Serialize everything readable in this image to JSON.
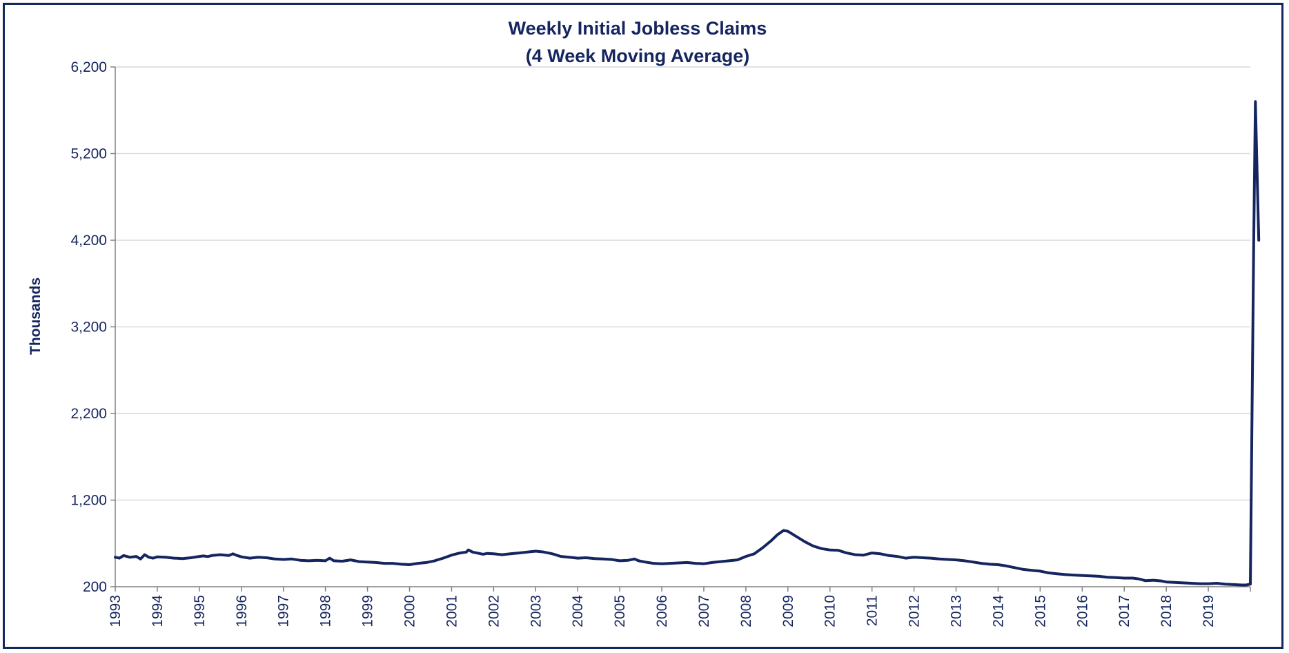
{
  "chart_data": {
    "type": "line",
    "title": [
      "Weekly Initial Jobless Claims",
      "(4 Week Moving  Average)"
    ],
    "xlabel": "",
    "ylabel": "Thousands",
    "ylim": [
      200,
      6200
    ],
    "yticks": [
      200,
      1200,
      2200,
      3200,
      4200,
      5200,
      6200
    ],
    "ytick_labels": [
      "200",
      "1,200",
      "2,200",
      "3,200",
      "4,200",
      "5,200",
      "6,200"
    ],
    "xlim": [
      1993,
      2020
    ],
    "xticks": [
      1993,
      1994,
      1995,
      1996,
      1997,
      1998,
      1999,
      2000,
      2001,
      2002,
      2003,
      2004,
      2005,
      2006,
      2007,
      2008,
      2009,
      2010,
      2011,
      2012,
      2013,
      2014,
      2015,
      2016,
      2017,
      2018,
      2019
    ],
    "xtick_labels": [
      "1993",
      "1994",
      "1995",
      "1996",
      "1997",
      "1998",
      "1999",
      "2000",
      "2001",
      "2002",
      "2003",
      "2004",
      "2005",
      "2006",
      "2007",
      "2008",
      "2009",
      "2010",
      "2011",
      "2012",
      "2013",
      "2014",
      "2015",
      "2016",
      "2017",
      "2018",
      "2019"
    ],
    "grid": true,
    "legend": "none",
    "line_color": "#15255f",
    "grid_color": "#d9d9d9",
    "series": [
      {
        "x": [
          1993.0,
          1993.1,
          1993.2,
          1993.35,
          1993.5,
          1993.6,
          1993.7,
          1993.8,
          1993.9,
          1994.0,
          1994.2,
          1994.4,
          1994.6,
          1994.8,
          1995.0,
          1995.1,
          1995.2,
          1995.3,
          1995.5,
          1995.7,
          1995.8,
          1995.9,
          1996.0,
          1996.2,
          1996.4,
          1996.6,
          1996.8,
          1997.0,
          1997.2,
          1997.4,
          1997.6,
          1997.8,
          1998.0,
          1998.1,
          1998.2,
          1998.4,
          1998.6,
          1998.8,
          1999.0,
          1999.2,
          1999.4,
          1999.6,
          1999.8,
          2000.0,
          2000.2,
          2000.4,
          2000.6,
          2000.8,
          2001.0,
          2001.2,
          2001.35,
          2001.4,
          2001.5,
          2001.6,
          2001.75,
          2001.85,
          2002.0,
          2002.2,
          2002.4,
          2002.6,
          2002.8,
          2003.0,
          2003.2,
          2003.4,
          2003.6,
          2003.8,
          2004.0,
          2004.2,
          2004.4,
          2004.6,
          2004.8,
          2005.0,
          2005.2,
          2005.35,
          2005.45,
          2005.6,
          2005.8,
          2006.0,
          2006.2,
          2006.4,
          2006.6,
          2006.8,
          2007.0,
          2007.2,
          2007.4,
          2007.6,
          2007.8,
          2008.0,
          2008.2,
          2008.4,
          2008.6,
          2008.75,
          2008.9,
          2009.0,
          2009.2,
          2009.4,
          2009.6,
          2009.8,
          2010.0,
          2010.2,
          2010.4,
          2010.6,
          2010.8,
          2011.0,
          2011.2,
          2011.4,
          2011.6,
          2011.8,
          2012.0,
          2012.2,
          2012.4,
          2012.6,
          2012.8,
          2013.0,
          2013.2,
          2013.4,
          2013.6,
          2013.8,
          2014.0,
          2014.2,
          2014.4,
          2014.6,
          2014.8,
          2015.0,
          2015.2,
          2015.4,
          2015.6,
          2015.8,
          2016.0,
          2016.2,
          2016.4,
          2016.6,
          2016.8,
          2017.0,
          2017.2,
          2017.35,
          2017.5,
          2017.7,
          2017.9,
          2018.0,
          2018.2,
          2018.4,
          2018.6,
          2018.8,
          2019.0,
          2019.2,
          2019.4,
          2019.6,
          2019.8,
          2019.9,
          2020.0,
          2020.08,
          2020.12,
          2020.16,
          2020.2
        ],
        "y": [
          540,
          530,
          560,
          540,
          550,
          520,
          570,
          540,
          530,
          545,
          540,
          530,
          525,
          535,
          550,
          555,
          548,
          560,
          570,
          560,
          580,
          560,
          545,
          530,
          540,
          535,
          520,
          515,
          520,
          505,
          500,
          505,
          500,
          530,
          500,
          495,
          510,
          490,
          485,
          480,
          470,
          470,
          460,
          455,
          470,
          480,
          500,
          530,
          565,
          590,
          600,
          625,
          600,
          590,
          575,
          585,
          580,
          570,
          580,
          590,
          600,
          610,
          600,
          580,
          550,
          540,
          530,
          535,
          525,
          520,
          515,
          500,
          505,
          520,
          500,
          485,
          470,
          465,
          470,
          475,
          480,
          470,
          465,
          480,
          490,
          500,
          510,
          550,
          580,
          650,
          730,
          800,
          850,
          840,
          780,
          720,
          670,
          640,
          625,
          620,
          590,
          570,
          565,
          590,
          580,
          560,
          550,
          530,
          540,
          535,
          530,
          520,
          515,
          510,
          500,
          485,
          470,
          460,
          455,
          440,
          420,
          400,
          390,
          380,
          360,
          350,
          340,
          335,
          330,
          325,
          320,
          310,
          305,
          300,
          300,
          290,
          270,
          275,
          265,
          255,
          250,
          245,
          240,
          235,
          235,
          240,
          230,
          225,
          220,
          220,
          230,
          4200,
          5800,
          5000,
          4200
        ]
      }
    ]
  }
}
